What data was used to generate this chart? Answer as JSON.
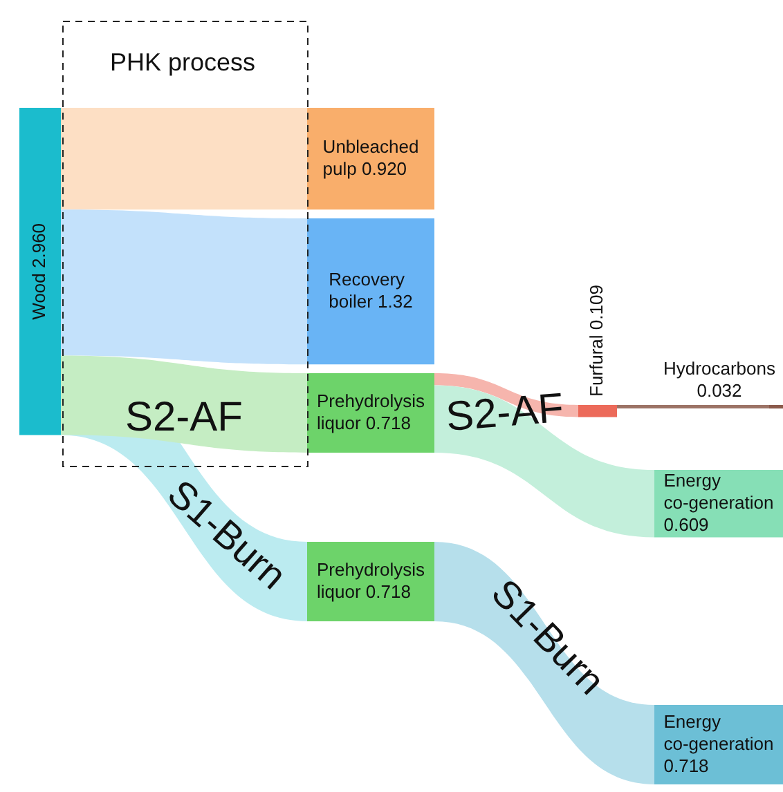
{
  "chart_data": {
    "type": "other",
    "categories": [
      "Wood",
      "Unbleached pulp",
      "Recovery boiler",
      "Prehydrolysis liquor",
      "Prehydrolysis liquor",
      "Furfural",
      "Hydrocarbons",
      "Energy co-generation",
      "Energy co-generation"
    ],
    "values": [
      2.96,
      0.92,
      1.32,
      0.718,
      0.718,
      0.109,
      0.032,
      0.609,
      0.718
    ],
    "value_labels": [
      "2.960",
      "0.920",
      "1.32",
      "0.718",
      "0.718",
      "0.109",
      "0.032",
      "0.609",
      "0.718"
    ],
    "colors": [
      "#1bbccd",
      "#f9ae6b",
      "#69b4f5",
      "#6dd36a",
      "#6dd36a",
      "#ec6a5a",
      "#8b5a4b",
      "#86dfb6",
      "#6cbfd6"
    ],
    "data_labels": true,
    "annotations": [
      "PHK process",
      "S2-AF",
      "S2-AF",
      "S1-Burn",
      "S1-Burn"
    ]
  }
}
